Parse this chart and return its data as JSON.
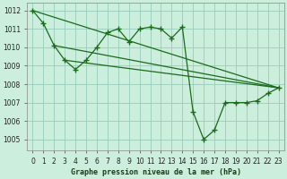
{
  "title": "Graphe pression niveau de la mer (hPa)",
  "bg_color": "#cceedd",
  "grid_color": "#99ccbb",
  "line_color": "#1a6b1a",
  "xlim": [
    -0.5,
    23.5
  ],
  "ylim": [
    1004.4,
    1012.4
  ],
  "yticks": [
    1005,
    1006,
    1007,
    1008,
    1009,
    1010,
    1011,
    1012
  ],
  "xticks": [
    0,
    1,
    2,
    3,
    4,
    5,
    6,
    7,
    8,
    9,
    10,
    11,
    12,
    13,
    14,
    15,
    16,
    17,
    18,
    19,
    20,
    21,
    22,
    23
  ],
  "series1_x": [
    0,
    1,
    2,
    3,
    4,
    5,
    6,
    7,
    8,
    9,
    10,
    11,
    12,
    13,
    14,
    15,
    16,
    17,
    18,
    19,
    20,
    21,
    22,
    23
  ],
  "series1_y": [
    1012.0,
    1011.3,
    1010.1,
    1009.3,
    1008.8,
    1009.3,
    1010.0,
    1010.8,
    1011.0,
    1010.3,
    1011.0,
    1011.1,
    1011.0,
    1010.5,
    1011.1,
    1006.5,
    1005.0,
    1005.5,
    1007.0,
    1007.0,
    1007.0,
    1007.1,
    1007.5,
    1007.8
  ],
  "line1_x": [
    0,
    23
  ],
  "line1_y": [
    1012.0,
    1007.8
  ],
  "line2_x": [
    2,
    23
  ],
  "line2_y": [
    1010.1,
    1007.8
  ],
  "line3_x": [
    3,
    23
  ],
  "line3_y": [
    1009.3,
    1007.8
  ]
}
